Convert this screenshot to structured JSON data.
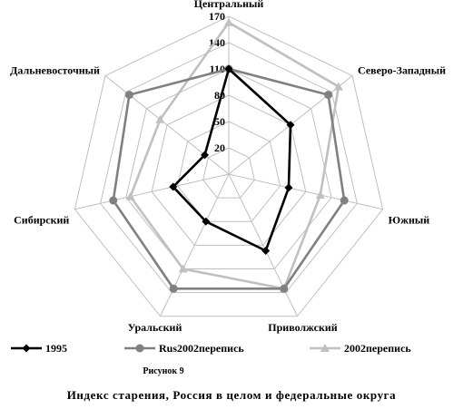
{
  "chart_data": {
    "type": "radar",
    "categories": [
      "Центральный",
      "Северо-Западный",
      "Южный",
      "Приволжский",
      "Уральский",
      "Сибирский",
      "Дальневосточный"
    ],
    "rlim": [
      -10,
      170
    ],
    "ticks": [
      20,
      50,
      80,
      110,
      140,
      170
    ],
    "series": [
      {
        "name": "1995",
        "values": [
          110,
          80,
          60,
          87,
          50,
          55,
          25
        ],
        "color": "#000000",
        "marker": "diamond"
      },
      {
        "name": "Rus2002перепись",
        "values": [
          110,
          135,
          125,
          135,
          135,
          125,
          135
        ],
        "color": "#808080",
        "marker": "circle"
      },
      {
        "name": "2002перепись",
        "values": [
          163,
          150,
          97,
          135,
          110,
          105,
          90
        ],
        "color": "#c0c0c0",
        "marker": "triangle"
      }
    ]
  },
  "figure_label": "Рисунок 9",
  "caption": "Индекс старения, Россия в целом и федеральные округа"
}
